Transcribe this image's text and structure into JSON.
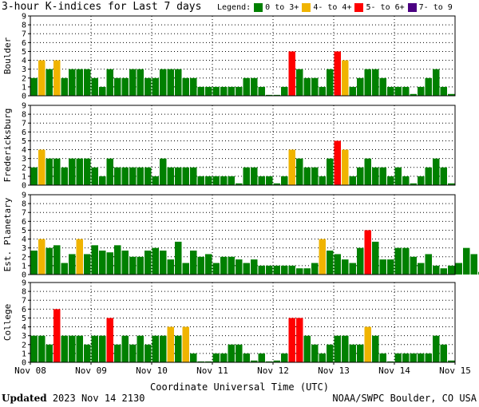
{
  "chart_data": {
    "type": "bar",
    "title": "3-hour K-indices for Last 7 days",
    "legend": {
      "title": "Legend:",
      "items": [
        {
          "label": "0 to 3+",
          "color": "#008000"
        },
        {
          "label": "4- to 4+",
          "color": "#f0b400"
        },
        {
          "label": "5- to 6+",
          "color": "#ff0000"
        },
        {
          "label": "7- to 9",
          "color": "#4b0082"
        }
      ]
    },
    "xlabel": "Coordinate Universal Time (UTC)",
    "x_ticks": [
      "Nov 08",
      "Nov 09",
      "Nov 10",
      "Nov 11",
      "Nov 12",
      "Nov 13",
      "Nov 14",
      "Nov 15"
    ],
    "ylim": [
      0,
      9
    ],
    "y_ticks": [
      "0",
      "1",
      "2",
      "3",
      "4",
      "5",
      "6",
      "7",
      "8",
      "9"
    ],
    "grid": true,
    "bins_per_day": 8,
    "panels": [
      {
        "name": "Boulder",
        "values": [
          2,
          4,
          3,
          4,
          2,
          3,
          3,
          3,
          2,
          1,
          3,
          2,
          2,
          3,
          3,
          2,
          2,
          3,
          3,
          3,
          2,
          2,
          1,
          1,
          1,
          1,
          1,
          1,
          2,
          2,
          1,
          0.1,
          0.1,
          1,
          5,
          3,
          2,
          2,
          1,
          3,
          5,
          4,
          1,
          2,
          3,
          3,
          2,
          1,
          1,
          1,
          0.2,
          1,
          2,
          3,
          1,
          0.2
        ]
      },
      {
        "name": "Fredericksburg",
        "values": [
          2,
          4,
          3,
          3,
          2,
          3,
          3,
          3,
          2,
          1,
          3,
          2,
          2,
          2,
          2,
          2,
          1,
          3,
          2,
          2,
          2,
          2,
          1,
          1,
          1,
          1,
          1,
          0.2,
          2,
          2,
          1,
          1,
          0.2,
          1,
          4,
          3,
          2,
          2,
          1,
          3,
          5,
          4,
          1,
          2,
          3,
          2,
          2,
          1,
          2,
          1,
          0.2,
          1,
          2,
          3,
          2,
          0.2
        ]
      },
      {
        "name": "Est. Planetary",
        "values": [
          2.7,
          4,
          3,
          3.3,
          1.3,
          2.3,
          4,
          2.3,
          3.3,
          2.7,
          2.5,
          3.3,
          2.7,
          2,
          2,
          2.7,
          3,
          2.7,
          1.7,
          3.7,
          1.3,
          2.7,
          2,
          2.3,
          1.3,
          2,
          2,
          1.7,
          1.3,
          1.7,
          1,
          1,
          1,
          1,
          1,
          0.7,
          0.7,
          1.3,
          4,
          2.7,
          2.3,
          1.7,
          1.3,
          3,
          5,
          3.7,
          1.7,
          1.7,
          3,
          3,
          2,
          1.3,
          2.3,
          1,
          0.7,
          1,
          1.3,
          3,
          2.3,
          0.3
        ]
      },
      {
        "name": "College",
        "values": [
          3,
          3,
          2,
          6,
          3,
          3,
          3,
          2,
          3,
          3,
          5,
          2,
          3,
          2,
          3,
          2,
          3,
          3,
          4,
          3,
          4,
          1,
          0.1,
          0.1,
          1,
          1,
          2,
          2,
          1,
          0.2,
          1,
          0.1,
          0.2,
          1,
          5,
          5,
          3,
          2,
          1,
          2,
          3,
          3,
          2,
          2,
          4,
          3,
          1,
          0.1,
          1,
          1,
          1,
          1,
          1,
          3,
          2,
          0.2
        ]
      }
    ]
  },
  "footer": {
    "updated_label": "Updated",
    "updated_value": "2023 Nov 14 2130",
    "source": "NOAA/SWPC Boulder, CO USA"
  }
}
